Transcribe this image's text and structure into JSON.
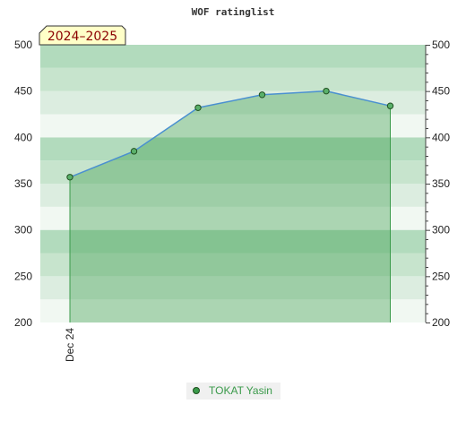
{
  "chart_data": {
    "type": "area",
    "title": "WOF ratinglist",
    "season_label": "2024–2025",
    "x_tick_labels": [
      "Dec 24"
    ],
    "ylim": [
      200,
      500
    ],
    "y_ticks": [
      200,
      250,
      300,
      350,
      400,
      450,
      500
    ],
    "grid": true,
    "legend_position": "bottom",
    "series": [
      {
        "name": "TOKAT Yasin",
        "color": "#3a9a4a",
        "values": [
          357,
          385,
          432,
          446,
          450,
          434
        ]
      }
    ]
  }
}
